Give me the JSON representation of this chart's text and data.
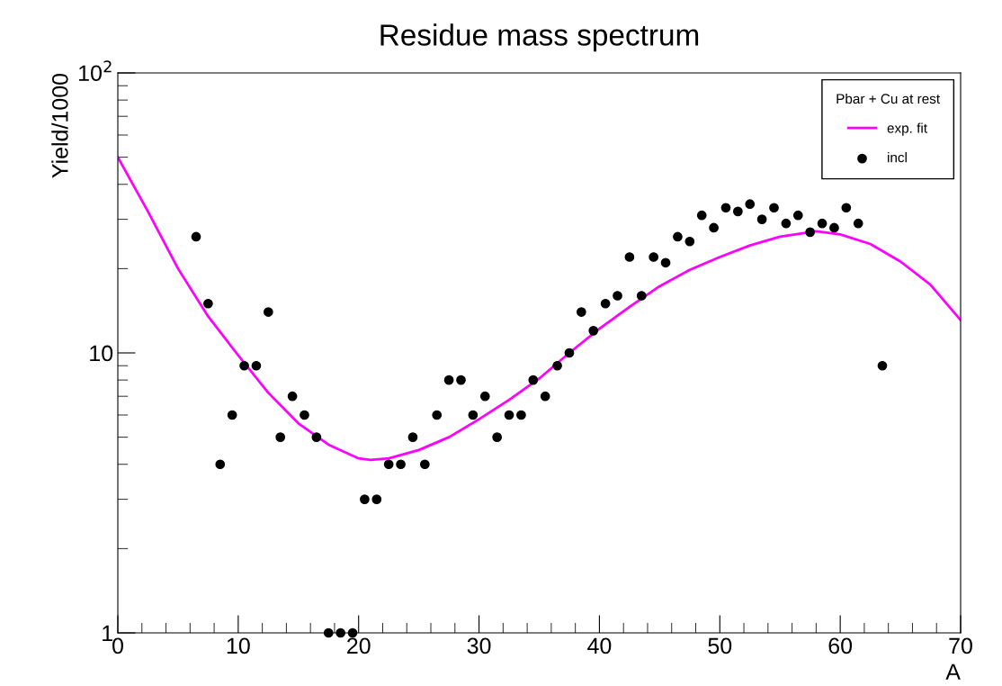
{
  "chart_data": {
    "type": "scatter",
    "title": "Residue mass spectrum",
    "xlabel": "A",
    "ylabel": "Yield/1000",
    "legend_title": "Pbar + Cu at rest",
    "log": "y",
    "legend": "top right",
    "grid": false,
    "xlim": [
      0,
      70
    ],
    "xticks": [
      0,
      10,
      20,
      30,
      40,
      50,
      60,
      70
    ],
    "ylim": [
      1,
      100
    ],
    "yticks": [
      1,
      10,
      {
        "value": 100,
        "label": "10$^{2}$"
      }
    ],
    "series": [
      {
        "name": "exp. fit",
        "type": "line",
        "color": "#ff00ff",
        "marker": "none",
        "line_style": "solid",
        "x": [
          0,
          2.5,
          5,
          7.5,
          10,
          12.5,
          15,
          17.5,
          20,
          21,
          22.5,
          25,
          27.5,
          30,
          32.5,
          35,
          37.5,
          40,
          42.5,
          45,
          47.5,
          50,
          52.5,
          55,
          58,
          60,
          62.5,
          65,
          67.5,
          70
        ],
        "values": [
          50,
          32,
          20,
          13.5,
          9.8,
          7.2,
          5.6,
          4.7,
          4.2,
          4.15,
          4.2,
          4.5,
          5.0,
          5.8,
          6.8,
          8.1,
          10,
          12.2,
          14.6,
          17.3,
          19.8,
          22,
          24.2,
          26,
          27.2,
          26.5,
          24.5,
          21.2,
          17.5,
          13.1
        ]
      },
      {
        "name": "incl",
        "color": "#000000",
        "marker": "circle",
        "x": [
          6.5,
          7.5,
          8.5,
          9.5,
          10.5,
          11.5,
          12.5,
          13.5,
          14.5,
          15.5,
          16.5,
          17.5,
          18.5,
          19.5,
          20.5,
          21.5,
          22.5,
          23.5,
          24.5,
          25.5,
          26.5,
          27.5,
          28.5,
          29.5,
          30.5,
          31.5,
          32.5,
          33.5,
          34.5,
          35.5,
          36.5,
          37.5,
          38.5,
          39.5,
          40.5,
          41.5,
          42.5,
          43.5,
          44.5,
          45.5,
          46.5,
          47.5,
          48.5,
          49.5,
          50.5,
          51.5,
          52.5,
          53.5,
          54.5,
          55.5,
          56.5,
          57.5,
          58.5,
          59.5,
          60.5,
          61.5,
          63.5
        ],
        "values": [
          26,
          15,
          4,
          6,
          9,
          9,
          14,
          5,
          7,
          6,
          5,
          1,
          1,
          1,
          3,
          3,
          4,
          4,
          5,
          4,
          6,
          8,
          8,
          6,
          7,
          5,
          6,
          6,
          8,
          7,
          9,
          10,
          14,
          12,
          15,
          16,
          22,
          16,
          22,
          21,
          26,
          25,
          31,
          28,
          33,
          32,
          34,
          30,
          33,
          29,
          31,
          27,
          29,
          28,
          33,
          29,
          9
        ]
      }
    ]
  }
}
